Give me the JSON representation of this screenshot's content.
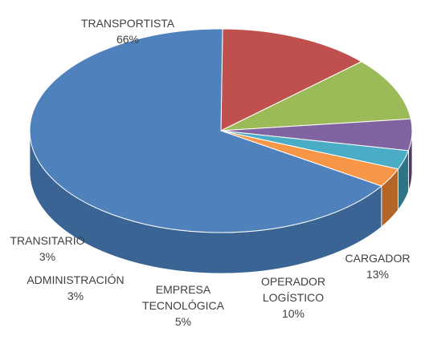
{
  "chart_data": {
    "type": "pie",
    "style": "3d",
    "slices": [
      {
        "name": "CARGADOR",
        "value": 13,
        "label": "13%",
        "color": "#c0504d",
        "side_color": "#4e1a19"
      },
      {
        "name": "OPERADOR LOGÍSTICO",
        "label_lines": [
          "OPERADOR",
          "LOGÍSTICO"
        ],
        "value": 10,
        "label": "10%",
        "color": "#9bbb59",
        "side_color": "#435a1e"
      },
      {
        "name": "EMPRESA TECNOLÓGICA",
        "label_lines": [
          "EMPRESA",
          "TECNOLÓGICA"
        ],
        "value": 5,
        "label": "5%",
        "color": "#8064a2",
        "side_color": "#4d3a69"
      },
      {
        "name": "ADMINISTRACIÓN",
        "value": 3,
        "label": "3%",
        "color": "#4bacc6",
        "side_color": "#2e7487"
      },
      {
        "name": "TRANSITARIO",
        "value": 3,
        "label": "3%",
        "color": "#f79646",
        "side_color": "#b46528"
      },
      {
        "name": "TRANSPORTISTA",
        "value": 66,
        "label": "66%",
        "color": "#4f81bd",
        "side_color": "#3a6494"
      }
    ]
  }
}
